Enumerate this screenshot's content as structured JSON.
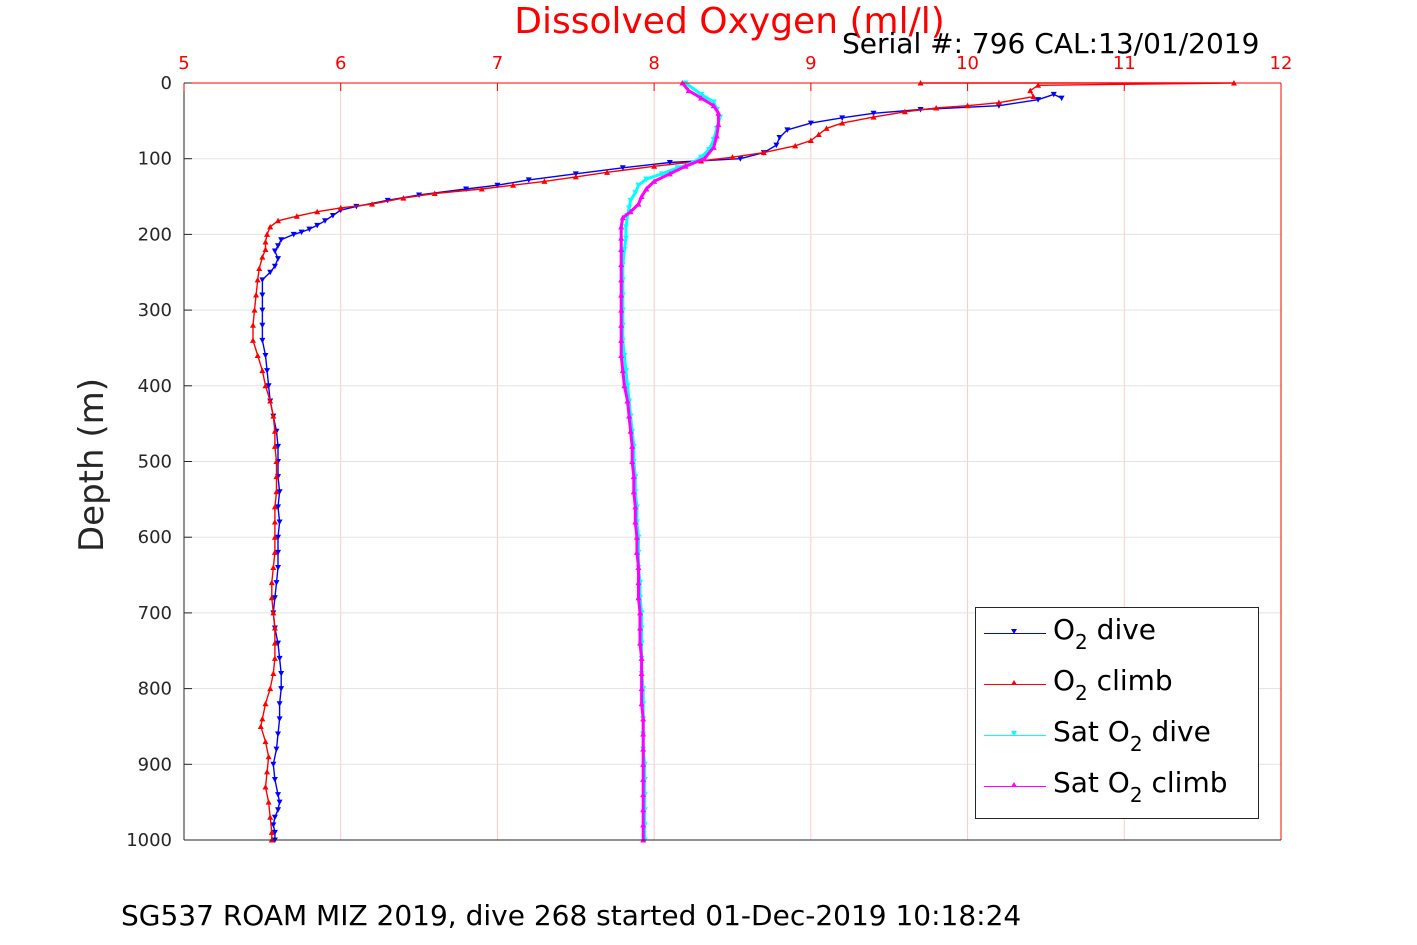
{
  "chart_data": {
    "type": "scatter",
    "title": "Dissolved Oxygen (ml/l)",
    "annotation": "Serial #: 796  CAL:13/01/2019",
    "ylabel": "Depth (m)",
    "caption": "SG537 ROAM MIZ 2019, dive 268 started 01-Dec-2019 10:18:24",
    "xlim": [
      5,
      12
    ],
    "ylim": [
      0,
      1000
    ],
    "y_reversed": true,
    "x_axis_position": "top",
    "x_ticks": [
      5,
      6,
      7,
      8,
      9,
      10,
      11,
      12
    ],
    "y_ticks": [
      0,
      100,
      200,
      300,
      400,
      500,
      600,
      700,
      800,
      900,
      1000
    ],
    "grid": true,
    "axis_color": "#ff0000",
    "legend_position": "bottom-right",
    "legend": [
      {
        "pre": "O",
        "sub": "2",
        "post": " dive"
      },
      {
        "pre": "O",
        "sub": "2",
        "post": " climb"
      },
      {
        "pre": "Sat O",
        "sub": "2",
        "post": " dive"
      },
      {
        "pre": "Sat O",
        "sub": "2",
        "post": " climb"
      }
    ],
    "series": [
      {
        "color": "#0000ff",
        "marker": "triangle-down",
        "points": [
          [
            10.6,
            20
          ],
          [
            10.55,
            15
          ],
          [
            10.45,
            22
          ],
          [
            10.2,
            30
          ],
          [
            9.7,
            35
          ],
          [
            9.4,
            40
          ],
          [
            9.2,
            46
          ],
          [
            9.0,
            53
          ],
          [
            8.85,
            62
          ],
          [
            8.8,
            72
          ],
          [
            8.78,
            82
          ],
          [
            8.7,
            92
          ],
          [
            8.55,
            100
          ],
          [
            8.1,
            105
          ],
          [
            7.8,
            112
          ],
          [
            7.5,
            120
          ],
          [
            7.2,
            128
          ],
          [
            7.0,
            135
          ],
          [
            6.8,
            140
          ],
          [
            6.5,
            148
          ],
          [
            6.3,
            155
          ],
          [
            6.1,
            163
          ],
          [
            6.0,
            168
          ],
          [
            5.95,
            175
          ],
          [
            5.9,
            182
          ],
          [
            5.85,
            188
          ],
          [
            5.8,
            193
          ],
          [
            5.75,
            197
          ],
          [
            5.7,
            200
          ],
          [
            5.62,
            207
          ],
          [
            5.6,
            215
          ],
          [
            5.58,
            222
          ],
          [
            5.6,
            232
          ],
          [
            5.58,
            242
          ],
          [
            5.55,
            250
          ],
          [
            5.5,
            260
          ],
          [
            5.5,
            280
          ],
          [
            5.5,
            300
          ],
          [
            5.5,
            320
          ],
          [
            5.5,
            340
          ],
          [
            5.52,
            360
          ],
          [
            5.53,
            380
          ],
          [
            5.54,
            400
          ],
          [
            5.55,
            420
          ],
          [
            5.57,
            440
          ],
          [
            5.59,
            460
          ],
          [
            5.6,
            480
          ],
          [
            5.6,
            500
          ],
          [
            5.6,
            520
          ],
          [
            5.61,
            540
          ],
          [
            5.6,
            560
          ],
          [
            5.61,
            580
          ],
          [
            5.6,
            600
          ],
          [
            5.6,
            620
          ],
          [
            5.6,
            640
          ],
          [
            5.59,
            660
          ],
          [
            5.58,
            680
          ],
          [
            5.57,
            700
          ],
          [
            5.58,
            720
          ],
          [
            5.6,
            740
          ],
          [
            5.61,
            760
          ],
          [
            5.62,
            780
          ],
          [
            5.62,
            800
          ],
          [
            5.61,
            820
          ],
          [
            5.61,
            840
          ],
          [
            5.6,
            860
          ],
          [
            5.59,
            880
          ],
          [
            5.57,
            900
          ],
          [
            5.58,
            920
          ],
          [
            5.6,
            940
          ],
          [
            5.61,
            950
          ],
          [
            5.6,
            960
          ],
          [
            5.58,
            970
          ],
          [
            5.57,
            980
          ],
          [
            5.58,
            990
          ],
          [
            5.58,
            1000
          ]
        ]
      },
      {
        "color": "#ff0000",
        "marker": "triangle-up",
        "points": [
          [
            9.7,
            0
          ],
          [
            11.7,
            0
          ],
          [
            10.45,
            3
          ],
          [
            10.4,
            10
          ],
          [
            10.42,
            18
          ],
          [
            10.2,
            26
          ],
          [
            10.0,
            30
          ],
          [
            9.8,
            33
          ],
          [
            9.6,
            38
          ],
          [
            9.4,
            45
          ],
          [
            9.2,
            53
          ],
          [
            9.1,
            60
          ],
          [
            9.05,
            68
          ],
          [
            9.0,
            76
          ],
          [
            8.9,
            83
          ],
          [
            8.7,
            92
          ],
          [
            8.5,
            98
          ],
          [
            8.3,
            103
          ],
          [
            8.0,
            110
          ],
          [
            7.7,
            118
          ],
          [
            7.5,
            124
          ],
          [
            7.3,
            130
          ],
          [
            7.1,
            135
          ],
          [
            6.9,
            140
          ],
          [
            6.6,
            146
          ],
          [
            6.4,
            152
          ],
          [
            6.2,
            160
          ],
          [
            6.0,
            165
          ],
          [
            5.85,
            170
          ],
          [
            5.72,
            176
          ],
          [
            5.6,
            182
          ],
          [
            5.55,
            190
          ],
          [
            5.53,
            200
          ],
          [
            5.52,
            210
          ],
          [
            5.52,
            220
          ],
          [
            5.5,
            230
          ],
          [
            5.48,
            245
          ],
          [
            5.47,
            260
          ],
          [
            5.46,
            280
          ],
          [
            5.45,
            300
          ],
          [
            5.44,
            320
          ],
          [
            5.44,
            340
          ],
          [
            5.47,
            360
          ],
          [
            5.5,
            380
          ],
          [
            5.52,
            400
          ],
          [
            5.55,
            420
          ],
          [
            5.57,
            440
          ],
          [
            5.58,
            460
          ],
          [
            5.58,
            480
          ],
          [
            5.59,
            500
          ],
          [
            5.59,
            520
          ],
          [
            5.59,
            540
          ],
          [
            5.58,
            560
          ],
          [
            5.58,
            580
          ],
          [
            5.58,
            600
          ],
          [
            5.58,
            620
          ],
          [
            5.57,
            640
          ],
          [
            5.56,
            660
          ],
          [
            5.56,
            680
          ],
          [
            5.57,
            700
          ],
          [
            5.58,
            720
          ],
          [
            5.58,
            740
          ],
          [
            5.58,
            760
          ],
          [
            5.57,
            780
          ],
          [
            5.55,
            800
          ],
          [
            5.52,
            820
          ],
          [
            5.5,
            840
          ],
          [
            5.49,
            850
          ],
          [
            5.52,
            870
          ],
          [
            5.54,
            890
          ],
          [
            5.53,
            910
          ],
          [
            5.52,
            930
          ],
          [
            5.54,
            950
          ],
          [
            5.55,
            970
          ],
          [
            5.56,
            990
          ],
          [
            5.56,
            1000
          ]
        ]
      },
      {
        "color": "#00ffff",
        "marker": "triangle-down",
        "points": [
          [
            8.2,
            0
          ],
          [
            8.3,
            15
          ],
          [
            8.38,
            25
          ],
          [
            8.4,
            35
          ],
          [
            8.42,
            45
          ],
          [
            8.4,
            60
          ],
          [
            8.38,
            75
          ],
          [
            8.35,
            88
          ],
          [
            8.3,
            98
          ],
          [
            8.25,
            105
          ],
          [
            8.15,
            112
          ],
          [
            8.05,
            120
          ],
          [
            7.95,
            127
          ],
          [
            7.9,
            135
          ],
          [
            7.88,
            145
          ],
          [
            7.85,
            155
          ],
          [
            7.84,
            165
          ],
          [
            7.83,
            175
          ],
          [
            7.82,
            190
          ],
          [
            7.82,
            205
          ],
          [
            7.81,
            220
          ],
          [
            7.8,
            240
          ],
          [
            7.8,
            260
          ],
          [
            7.8,
            280
          ],
          [
            7.8,
            300
          ],
          [
            7.8,
            320
          ],
          [
            7.8,
            340
          ],
          [
            7.81,
            360
          ],
          [
            7.82,
            380
          ],
          [
            7.83,
            400
          ],
          [
            7.84,
            420
          ],
          [
            7.85,
            440
          ],
          [
            7.86,
            460
          ],
          [
            7.87,
            480
          ],
          [
            7.87,
            500
          ],
          [
            7.88,
            520
          ],
          [
            7.88,
            540
          ],
          [
            7.89,
            560
          ],
          [
            7.89,
            580
          ],
          [
            7.9,
            600
          ],
          [
            7.9,
            620
          ],
          [
            7.9,
            640
          ],
          [
            7.91,
            660
          ],
          [
            7.91,
            680
          ],
          [
            7.92,
            700
          ],
          [
            7.92,
            720
          ],
          [
            7.92,
            740
          ],
          [
            7.92,
            760
          ],
          [
            7.92,
            780
          ],
          [
            7.93,
            800
          ],
          [
            7.93,
            820
          ],
          [
            7.93,
            840
          ],
          [
            7.93,
            860
          ],
          [
            7.93,
            880
          ],
          [
            7.94,
            900
          ],
          [
            7.94,
            920
          ],
          [
            7.94,
            940
          ],
          [
            7.94,
            960
          ],
          [
            7.94,
            980
          ],
          [
            7.94,
            1000
          ]
        ]
      },
      {
        "color": "#ff00ff",
        "marker": "triangle-up",
        "points": [
          [
            8.18,
            0
          ],
          [
            8.22,
            10
          ],
          [
            8.3,
            20
          ],
          [
            8.38,
            30
          ],
          [
            8.41,
            40
          ],
          [
            8.41,
            55
          ],
          [
            8.4,
            70
          ],
          [
            8.38,
            85
          ],
          [
            8.32,
            100
          ],
          [
            8.2,
            110
          ],
          [
            8.1,
            120
          ],
          [
            8.0,
            130
          ],
          [
            7.95,
            140
          ],
          [
            7.92,
            150
          ],
          [
            7.9,
            160
          ],
          [
            7.85,
            170
          ],
          [
            7.8,
            178
          ],
          [
            7.79,
            190
          ],
          [
            7.79,
            205
          ],
          [
            7.79,
            220
          ],
          [
            7.79,
            240
          ],
          [
            7.79,
            260
          ],
          [
            7.79,
            280
          ],
          [
            7.79,
            300
          ],
          [
            7.79,
            320
          ],
          [
            7.79,
            340
          ],
          [
            7.79,
            360
          ],
          [
            7.8,
            380
          ],
          [
            7.81,
            400
          ],
          [
            7.83,
            420
          ],
          [
            7.84,
            440
          ],
          [
            7.85,
            460
          ],
          [
            7.86,
            480
          ],
          [
            7.86,
            500
          ],
          [
            7.87,
            520
          ],
          [
            7.87,
            540
          ],
          [
            7.88,
            560
          ],
          [
            7.88,
            580
          ],
          [
            7.89,
            600
          ],
          [
            7.89,
            620
          ],
          [
            7.9,
            640
          ],
          [
            7.9,
            660
          ],
          [
            7.9,
            680
          ],
          [
            7.91,
            700
          ],
          [
            7.91,
            720
          ],
          [
            7.91,
            740
          ],
          [
            7.92,
            760
          ],
          [
            7.92,
            780
          ],
          [
            7.92,
            800
          ],
          [
            7.92,
            820
          ],
          [
            7.93,
            840
          ],
          [
            7.93,
            860
          ],
          [
            7.93,
            880
          ],
          [
            7.93,
            900
          ],
          [
            7.93,
            920
          ],
          [
            7.93,
            940
          ],
          [
            7.93,
            960
          ],
          [
            7.93,
            980
          ],
          [
            7.93,
            1000
          ]
        ]
      }
    ]
  }
}
